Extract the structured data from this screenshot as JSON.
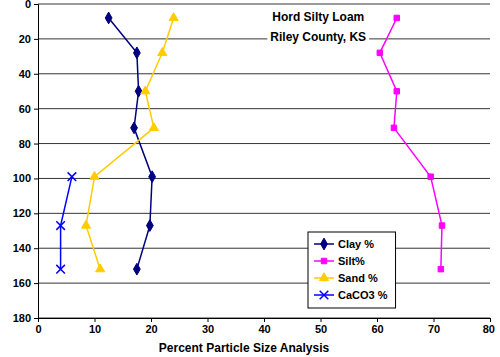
{
  "chart_data": {
    "type": "line",
    "title": "Hord Silty Loam",
    "subtitle": "Riley County, KS",
    "x_label": "Percent Particle Size Analysis",
    "xlim": [
      0,
      80
    ],
    "xticks": [
      0,
      10,
      20,
      30,
      40,
      50,
      60,
      70,
      80
    ],
    "ylim": [
      180,
      0
    ],
    "yticks": [
      0,
      20,
      40,
      60,
      80,
      100,
      120,
      140,
      160,
      180
    ],
    "grid": true,
    "legend": "lower right",
    "series": [
      {
        "name": "Clay %",
        "color": "#000080",
        "marker": "diamond",
        "x": [
          12.5,
          17.5,
          17.8,
          17,
          20.2,
          19.8,
          17.5
        ],
        "values": [
          8,
          28,
          50,
          71,
          99,
          127,
          152
        ]
      },
      {
        "name": "Silt%",
        "color": "#ff00ff",
        "marker": "square",
        "x": [
          63.5,
          60.5,
          63.5,
          63,
          69.5,
          71.5,
          71.3
        ],
        "values": [
          8,
          28,
          50,
          71,
          99,
          127,
          152
        ]
      },
      {
        "name": "Sand %",
        "color": "#ffcc00",
        "marker": "triangle",
        "x": [
          24,
          22,
          19,
          20.5,
          10,
          8.5,
          11
        ],
        "values": [
          8,
          28,
          50,
          71,
          99,
          127,
          152
        ]
      },
      {
        "name": "CaCO3 %",
        "color": "#0000ff",
        "marker": "x",
        "x": [
          6,
          4,
          4
        ],
        "values": [
          99,
          127,
          152
        ]
      }
    ]
  }
}
